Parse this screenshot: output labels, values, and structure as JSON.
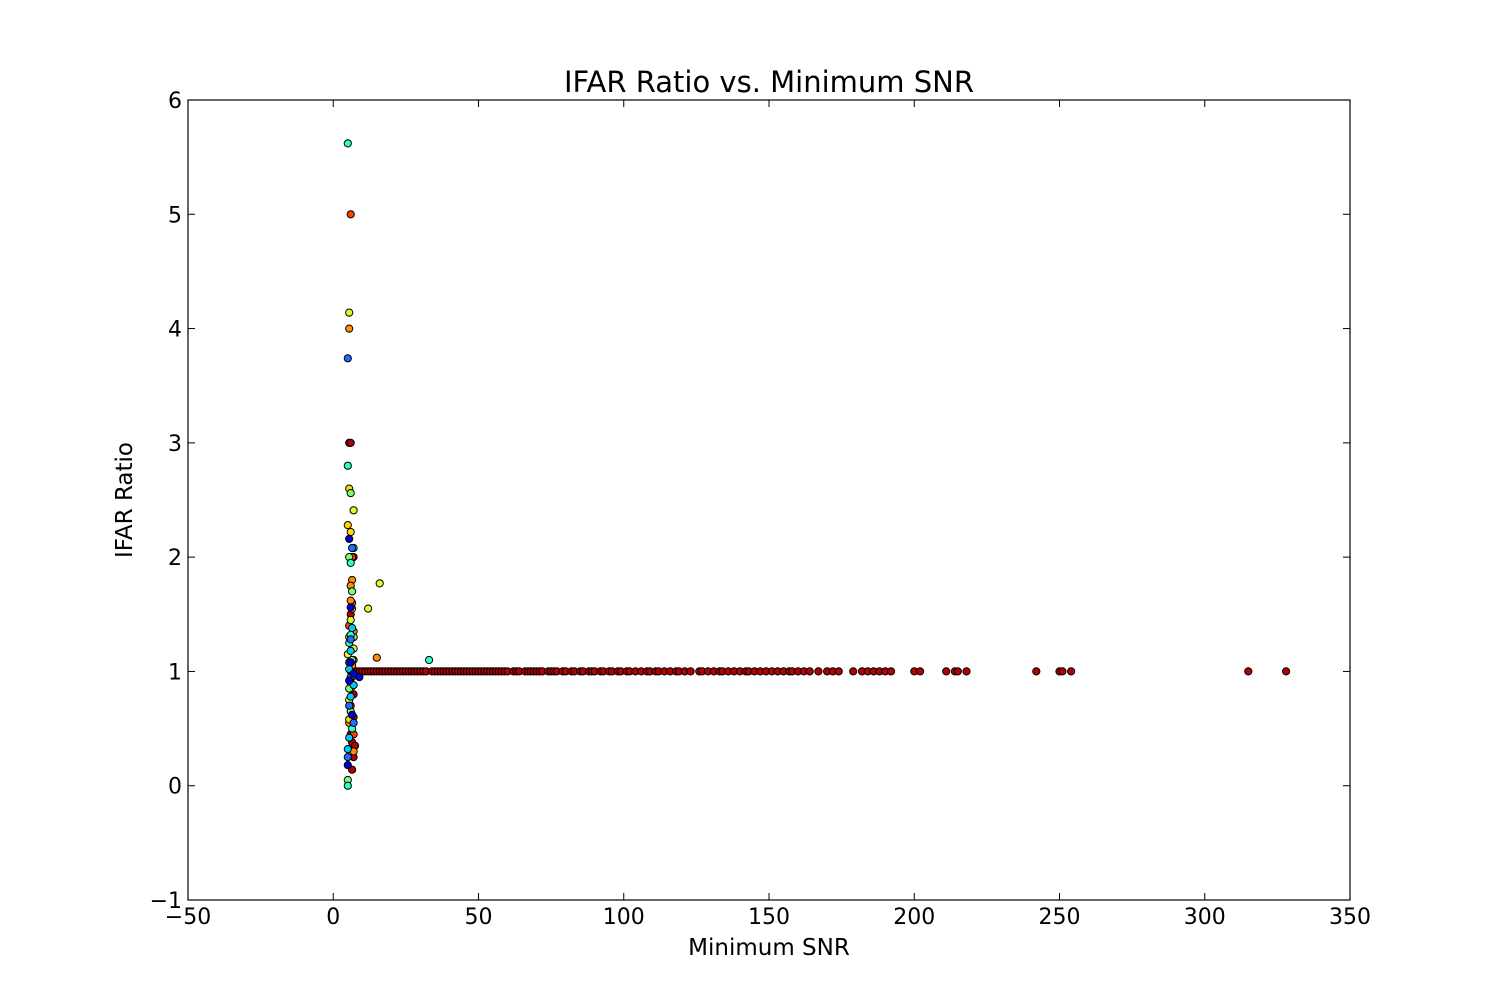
{
  "chart_data": {
    "type": "scatter",
    "title": "IFAR Ratio vs. Minimum SNR",
    "xlabel": "Minimum SNR",
    "ylabel": "IFAR Ratio",
    "xlim": [
      -50,
      350
    ],
    "ylim": [
      -1,
      6
    ],
    "xticks": [
      "−50",
      "0",
      "50",
      "100",
      "150",
      "200",
      "250",
      "300",
      "350"
    ],
    "yticks": [
      "−1",
      "0",
      "1",
      "2",
      "3",
      "4",
      "5",
      "6"
    ],
    "grid": false,
    "legend": "none",
    "marker_edge_color": "#000000",
    "colormap": "jet",
    "series": [
      {
        "color": "#b30000",
        "points": [
          [
            8,
            1
          ],
          [
            9,
            1
          ],
          [
            10,
            1
          ],
          [
            11,
            1
          ],
          [
            12,
            1
          ],
          [
            13,
            1
          ],
          [
            14,
            1
          ],
          [
            15,
            1
          ],
          [
            16,
            1
          ],
          [
            17,
            1
          ],
          [
            18,
            1
          ],
          [
            19,
            1
          ],
          [
            20,
            1
          ],
          [
            21,
            1
          ],
          [
            22,
            1
          ],
          [
            23,
            1
          ],
          [
            24,
            1
          ],
          [
            25,
            1
          ],
          [
            26,
            1
          ],
          [
            27,
            1
          ],
          [
            28,
            1
          ],
          [
            29,
            1
          ],
          [
            30,
            1
          ],
          [
            31,
            1
          ],
          [
            32,
            1
          ],
          [
            34,
            1
          ],
          [
            35,
            1
          ],
          [
            36,
            1
          ],
          [
            37,
            1
          ],
          [
            38,
            1
          ],
          [
            39,
            1
          ],
          [
            40,
            1
          ],
          [
            41,
            1
          ],
          [
            42,
            1
          ],
          [
            43,
            1
          ],
          [
            44,
            1
          ],
          [
            45,
            1
          ],
          [
            46,
            1
          ],
          [
            47,
            1
          ],
          [
            48,
            1
          ],
          [
            49,
            1
          ],
          [
            50,
            1
          ],
          [
            51,
            1
          ],
          [
            52,
            1
          ],
          [
            53,
            1
          ],
          [
            54,
            1
          ],
          [
            55,
            1
          ],
          [
            56,
            1
          ],
          [
            57,
            1
          ],
          [
            58,
            1
          ],
          [
            59,
            1
          ],
          [
            60,
            1
          ],
          [
            62,
            1
          ],
          [
            63,
            1
          ],
          [
            64,
            1
          ],
          [
            66,
            1
          ],
          [
            67,
            1
          ],
          [
            68,
            1
          ],
          [
            69,
            1
          ],
          [
            70,
            1
          ],
          [
            71,
            1
          ],
          [
            72,
            1
          ],
          [
            74,
            1
          ],
          [
            75,
            1
          ],
          [
            76,
            1
          ],
          [
            77,
            1
          ],
          [
            79,
            1
          ],
          [
            80,
            1
          ],
          [
            82,
            1
          ],
          [
            83,
            1
          ],
          [
            85,
            1
          ],
          [
            86,
            1
          ],
          [
            88,
            1
          ],
          [
            89,
            1
          ],
          [
            90,
            1
          ],
          [
            92,
            1
          ],
          [
            93,
            1
          ],
          [
            95,
            1
          ],
          [
            96,
            1
          ],
          [
            98,
            1
          ],
          [
            99,
            1
          ],
          [
            101,
            1
          ],
          [
            102,
            1
          ],
          [
            104,
            1
          ],
          [
            106,
            1
          ],
          [
            108,
            1
          ],
          [
            109,
            1
          ],
          [
            111,
            1
          ],
          [
            112,
            1
          ],
          [
            114,
            1
          ],
          [
            116,
            1
          ],
          [
            118,
            1
          ],
          [
            119,
            1
          ],
          [
            121,
            1
          ],
          [
            123,
            1
          ],
          [
            126,
            1
          ],
          [
            127,
            1
          ],
          [
            129,
            1
          ],
          [
            131,
            1
          ],
          [
            133,
            1
          ],
          [
            134,
            1
          ],
          [
            136,
            1
          ],
          [
            138,
            1
          ],
          [
            140,
            1
          ],
          [
            142,
            1
          ],
          [
            143,
            1
          ],
          [
            145,
            1
          ],
          [
            147,
            1
          ],
          [
            149,
            1
          ],
          [
            151,
            1
          ],
          [
            153,
            1
          ],
          [
            155,
            1
          ],
          [
            157,
            1
          ],
          [
            158,
            1
          ],
          [
            160,
            1
          ],
          [
            162,
            1
          ],
          [
            164,
            1
          ],
          [
            167,
            1
          ],
          [
            170,
            1
          ],
          [
            172,
            1
          ],
          [
            174,
            1
          ],
          [
            179,
            1
          ],
          [
            182,
            1
          ],
          [
            184,
            1
          ],
          [
            186,
            1
          ],
          [
            188,
            1
          ],
          [
            190,
            1
          ],
          [
            192,
            1
          ],
          [
            200,
            1
          ],
          [
            202,
            1
          ],
          [
            211,
            1
          ],
          [
            214,
            1
          ],
          [
            215,
            1
          ],
          [
            218,
            1
          ],
          [
            242,
            1
          ],
          [
            250,
            1
          ],
          [
            251,
            1
          ],
          [
            254,
            1
          ],
          [
            315,
            1
          ],
          [
            328,
            1
          ],
          [
            5.5,
            3.0
          ],
          [
            6.0,
            3.0
          ],
          [
            6.5,
            2.0
          ],
          [
            7.0,
            2.0
          ],
          [
            6.0,
            1.5
          ],
          [
            6.5,
            1.2
          ],
          [
            7.0,
            0.8
          ],
          [
            6.0,
            0.45
          ],
          [
            6.5,
            0.38
          ],
          [
            7.0,
            0.25
          ],
          [
            6.5,
            0.14
          ],
          [
            7.5,
            0.35
          ],
          [
            7.0,
            0.6
          ],
          [
            6.0,
            1.0
          ],
          [
            7.0,
            1.3
          ]
        ]
      },
      {
        "color": "#ff4000",
        "points": [
          [
            6.0,
            5.0
          ],
          [
            6.5,
            1.6
          ],
          [
            7.0,
            1.1
          ],
          [
            6.0,
            0.7
          ],
          [
            5.5,
            1.4
          ],
          [
            7.0,
            0.45
          ],
          [
            6.5,
            2.0
          ]
        ]
      },
      {
        "color": "#ff8c00",
        "points": [
          [
            5.5,
            4.0
          ],
          [
            6.5,
            1.8
          ],
          [
            15,
            1.12
          ],
          [
            6.0,
            1.75
          ],
          [
            7.0,
            1.35
          ],
          [
            6.0,
            0.9
          ],
          [
            5.5,
            0.55
          ],
          [
            7.0,
            0.3
          ],
          [
            6.5,
            1.05
          ],
          [
            6.0,
            1.62
          ]
        ]
      },
      {
        "color": "#ffd700",
        "points": [
          [
            5.0,
            2.28
          ],
          [
            6.0,
            2.22
          ],
          [
            5.5,
            2.6
          ],
          [
            5.5,
            1.3
          ],
          [
            6.5,
            1.55
          ],
          [
            5.5,
            0.58
          ],
          [
            6.0,
            0.85
          ],
          [
            7.0,
            0.98
          ]
        ]
      },
      {
        "color": "#d4ff2a",
        "points": [
          [
            5.5,
            4.14
          ],
          [
            7.0,
            2.41
          ],
          [
            16,
            1.77
          ],
          [
            12,
            1.55
          ],
          [
            5.0,
            1.15
          ],
          [
            6.0,
            1.45
          ],
          [
            6.5,
            0.95
          ],
          [
            5.5,
            0.75
          ],
          [
            7.0,
            1.2
          ]
        ]
      },
      {
        "color": "#7dff7a",
        "points": [
          [
            6.0,
            2.56
          ],
          [
            5.5,
            2.0
          ],
          [
            6.5,
            1.7
          ],
          [
            7.0,
            1.3
          ],
          [
            5.5,
            0.85
          ],
          [
            6.0,
            0.65
          ],
          [
            6.5,
            1.1
          ],
          [
            5.0,
            0.05
          ]
        ]
      },
      {
        "color": "#2bffc9",
        "points": [
          [
            5.0,
            5.62
          ],
          [
            5.0,
            2.8
          ],
          [
            33,
            1.1
          ],
          [
            6.0,
            1.95
          ],
          [
            7.0,
            2.08
          ],
          [
            5.5,
            1.25
          ],
          [
            6.5,
            0.5
          ],
          [
            5.0,
            0.0
          ],
          [
            6.0,
            1.32
          ]
        ]
      },
      {
        "color": "#00c8ff",
        "points": [
          [
            6.5,
            1.38
          ],
          [
            5.5,
            1.02
          ],
          [
            6.0,
            0.78
          ],
          [
            7.0,
            0.88
          ],
          [
            5.5,
            0.42
          ],
          [
            6.0,
            1.18
          ],
          [
            5.0,
            0.32
          ]
        ]
      },
      {
        "color": "#1f6fff",
        "points": [
          [
            5.0,
            3.74
          ],
          [
            6.5,
            2.08
          ],
          [
            5.5,
            1.08
          ],
          [
            6.0,
            0.95
          ],
          [
            7.0,
            0.55
          ],
          [
            5.0,
            0.25
          ],
          [
            6.0,
            1.28
          ],
          [
            5.5,
            0.7
          ]
        ]
      },
      {
        "color": "#0000d6",
        "points": [
          [
            5.5,
            2.16
          ],
          [
            6.0,
            1.56
          ],
          [
            7.0,
            0.98
          ],
          [
            5.5,
            0.92
          ],
          [
            6.5,
            0.62
          ],
          [
            5.0,
            0.18
          ],
          [
            9.0,
            0.95
          ],
          [
            6.0,
            1.08
          ]
        ]
      }
    ]
  }
}
